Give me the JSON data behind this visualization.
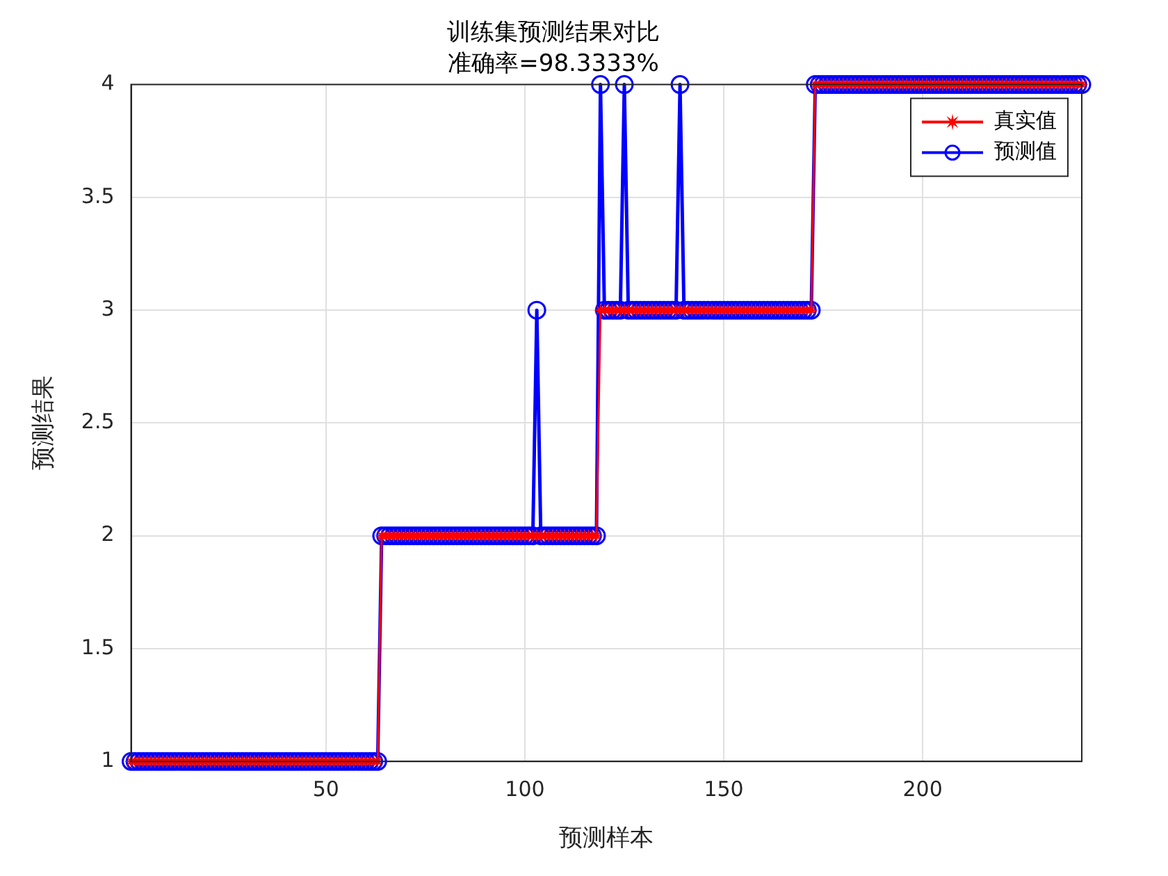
{
  "chart_data": {
    "type": "line",
    "title": "训练集预测结果对比",
    "subtitle": "准确率=98.3333%",
    "xlabel": "预测样本",
    "ylabel": "预测结果",
    "x": [
      1,
      2,
      3,
      4,
      5,
      6,
      7,
      8,
      9,
      10,
      11,
      12,
      13,
      14,
      15,
      16,
      17,
      18,
      19,
      20,
      21,
      22,
      23,
      24,
      25,
      26,
      27,
      28,
      29,
      30,
      31,
      32,
      33,
      34,
      35,
      36,
      37,
      38,
      39,
      40,
      41,
      42,
      43,
      44,
      45,
      46,
      47,
      48,
      49,
      50,
      51,
      52,
      53,
      54,
      55,
      56,
      57,
      58,
      59,
      60,
      61,
      62,
      63,
      64,
      65,
      66,
      67,
      68,
      69,
      70,
      71,
      72,
      73,
      74,
      75,
      76,
      77,
      78,
      79,
      80,
      81,
      82,
      83,
      84,
      85,
      86,
      87,
      88,
      89,
      90,
      91,
      92,
      93,
      94,
      95,
      96,
      97,
      98,
      99,
      100,
      101,
      102,
      103,
      104,
      105,
      106,
      107,
      108,
      109,
      110,
      111,
      112,
      113,
      114,
      115,
      116,
      117,
      118,
      119,
      120,
      121,
      122,
      123,
      124,
      125,
      126,
      127,
      128,
      129,
      130,
      131,
      132,
      133,
      134,
      135,
      136,
      137,
      138,
      139,
      140,
      141,
      142,
      143,
      144,
      145,
      146,
      147,
      148,
      149,
      150,
      151,
      152,
      153,
      154,
      155,
      156,
      157,
      158,
      159,
      160,
      161,
      162,
      163,
      164,
      165,
      166,
      167,
      168,
      169,
      170,
      171,
      172,
      173,
      174,
      175,
      176,
      177,
      178,
      179,
      180,
      181,
      182,
      183,
      184,
      185,
      186,
      187,
      188,
      189,
      190,
      191,
      192,
      193,
      194,
      195,
      196,
      197,
      198,
      199,
      200,
      201,
      202,
      203,
      204,
      205,
      206,
      207,
      208,
      209,
      210,
      211,
      212,
      213,
      214,
      215,
      216,
      217,
      218,
      219,
      220,
      221,
      222,
      223,
      224,
      225,
      226,
      227,
      228,
      229,
      230,
      231,
      232,
      233,
      234,
      235,
      236,
      237,
      238,
      239,
      240
    ],
    "series": [
      {
        "name": "真实值",
        "color": "#ff0000",
        "marker": "star",
        "values": [
          1,
          1,
          1,
          1,
          1,
          1,
          1,
          1,
          1,
          1,
          1,
          1,
          1,
          1,
          1,
          1,
          1,
          1,
          1,
          1,
          1,
          1,
          1,
          1,
          1,
          1,
          1,
          1,
          1,
          1,
          1,
          1,
          1,
          1,
          1,
          1,
          1,
          1,
          1,
          1,
          1,
          1,
          1,
          1,
          1,
          1,
          1,
          1,
          1,
          1,
          1,
          1,
          1,
          1,
          1,
          1,
          1,
          1,
          1,
          1,
          1,
          1,
          1,
          2,
          2,
          2,
          2,
          2,
          2,
          2,
          2,
          2,
          2,
          2,
          2,
          2,
          2,
          2,
          2,
          2,
          2,
          2,
          2,
          2,
          2,
          2,
          2,
          2,
          2,
          2,
          2,
          2,
          2,
          2,
          2,
          2,
          2,
          2,
          2,
          2,
          2,
          2,
          2,
          2,
          2,
          2,
          2,
          2,
          2,
          2,
          2,
          2,
          2,
          2,
          2,
          2,
          2,
          2,
          3,
          3,
          3,
          3,
          3,
          3,
          3,
          3,
          3,
          3,
          3,
          3,
          3,
          3,
          3,
          3,
          3,
          3,
          3,
          3,
          3,
          3,
          3,
          3,
          3,
          3,
          3,
          3,
          3,
          3,
          3,
          3,
          3,
          3,
          3,
          3,
          3,
          3,
          3,
          3,
          3,
          3,
          3,
          3,
          3,
          3,
          3,
          3,
          3,
          3,
          3,
          3,
          3,
          3,
          4,
          4,
          4,
          4,
          4,
          4,
          4,
          4,
          4,
          4,
          4,
          4,
          4,
          4,
          4,
          4,
          4,
          4,
          4,
          4,
          4,
          4,
          4,
          4,
          4,
          4,
          4,
          4,
          4,
          4,
          4,
          4,
          4,
          4,
          4,
          4,
          4,
          4,
          4,
          4,
          4,
          4,
          4,
          4,
          4,
          4,
          4,
          4,
          4,
          4,
          4,
          4,
          4,
          4,
          4,
          4,
          4,
          4,
          4,
          4,
          4,
          4,
          4,
          4,
          4,
          4,
          4,
          4
        ]
      },
      {
        "name": "预测值",
        "color": "#0000ff",
        "marker": "circle",
        "values": [
          1,
          1,
          1,
          1,
          1,
          1,
          1,
          1,
          1,
          1,
          1,
          1,
          1,
          1,
          1,
          1,
          1,
          1,
          1,
          1,
          1,
          1,
          1,
          1,
          1,
          1,
          1,
          1,
          1,
          1,
          1,
          1,
          1,
          1,
          1,
          1,
          1,
          1,
          1,
          1,
          1,
          1,
          1,
          1,
          1,
          1,
          1,
          1,
          1,
          1,
          1,
          1,
          1,
          1,
          1,
          1,
          1,
          1,
          1,
          1,
          1,
          1,
          1,
          2,
          2,
          2,
          2,
          2,
          2,
          2,
          2,
          2,
          2,
          2,
          2,
          2,
          2,
          2,
          2,
          2,
          2,
          2,
          2,
          2,
          2,
          2,
          2,
          2,
          2,
          2,
          2,
          2,
          2,
          2,
          2,
          2,
          2,
          2,
          2,
          2,
          2,
          2,
          3,
          2,
          2,
          2,
          2,
          2,
          2,
          2,
          2,
          2,
          2,
          2,
          2,
          2,
          2,
          2,
          4,
          3,
          3,
          3,
          3,
          3,
          4,
          3,
          3,
          3,
          3,
          3,
          3,
          3,
          3,
          3,
          3,
          3,
          3,
          3,
          4,
          3,
          3,
          3,
          3,
          3,
          3,
          3,
          3,
          3,
          3,
          3,
          3,
          3,
          3,
          3,
          3,
          3,
          3,
          3,
          3,
          3,
          3,
          3,
          3,
          3,
          3,
          3,
          3,
          3,
          3,
          3,
          3,
          3,
          4,
          4,
          4,
          4,
          4,
          4,
          4,
          4,
          4,
          4,
          4,
          4,
          4,
          4,
          4,
          4,
          4,
          4,
          4,
          4,
          4,
          4,
          4,
          4,
          4,
          4,
          4,
          4,
          4,
          4,
          4,
          4,
          4,
          4,
          4,
          4,
          4,
          4,
          4,
          4,
          4,
          4,
          4,
          4,
          4,
          4,
          4,
          4,
          4,
          4,
          4,
          4,
          4,
          4,
          4,
          4,
          4,
          4,
          4,
          4,
          4,
          4,
          4,
          4,
          4,
          4,
          4,
          4
        ]
      }
    ],
    "xlim": [
      1,
      240
    ],
    "xticks": [
      50,
      100,
      150,
      200
    ],
    "ylim": [
      1,
      4
    ],
    "yticks": [
      1,
      1.5,
      2,
      2.5,
      3,
      3.5,
      4
    ],
    "grid": true,
    "legend": "top right",
    "line_style": "solid"
  }
}
